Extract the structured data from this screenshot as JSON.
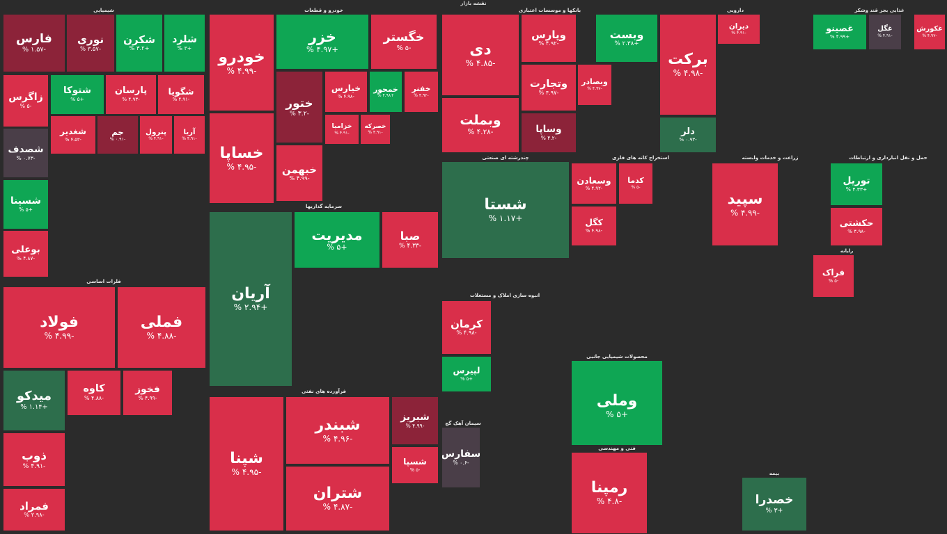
{
  "app": {
    "title": "نقشه بازار"
  },
  "colors": {
    "red": "#d92f4a",
    "dark_red": "#8c2339",
    "mid_red": "#a32a40",
    "green": "#0fa654",
    "dark_green": "#2d6e4c",
    "neutral": "#4a3e48",
    "bg": "#2b2b2b"
  },
  "sectors": [
    {
      "name": "شیمیایی",
      "tiles": [
        {
          "sym": "فارس",
          "pct": "-۱.۵۷ %",
          "c": "dark_red"
        },
        {
          "sym": "نوری",
          "pct": "-۳.۵۷ %",
          "c": "dark_red"
        },
        {
          "sym": "شکرن",
          "pct": "+۳.۲ %",
          "c": "green"
        },
        {
          "sym": "شلرد",
          "pct": "+۳ %",
          "c": "green"
        },
        {
          "sym": "زاگرس",
          "pct": "-۵ %",
          "c": "red"
        },
        {
          "sym": "شتوکا",
          "pct": "+۵ %",
          "c": "green"
        },
        {
          "sym": "پارسان",
          "pct": "-۴.۹۳ %",
          "c": "red"
        },
        {
          "sym": "شگویا",
          "pct": "-۴.۹۱ %",
          "c": "red"
        },
        {
          "sym": "شصدف",
          "pct": "-۰.۷۳ %",
          "c": "neutral"
        },
        {
          "sym": "شغدیر",
          "pct": "-۴.۵۳ %",
          "c": "red"
        },
        {
          "sym": "جم",
          "pct": "-۰.۹۱ %",
          "c": "dark_red"
        },
        {
          "sym": "پترول",
          "pct": "-۴.۹۱ %",
          "c": "red"
        },
        {
          "sym": "آریا",
          "pct": "-۴.۹۱ %",
          "c": "red"
        },
        {
          "sym": "شسینا",
          "pct": "+۵ %",
          "c": "green"
        },
        {
          "sym": "بوعلی",
          "pct": "-۴.۸۷ %",
          "c": "red"
        }
      ]
    },
    {
      "name": "خودرو و قطعات",
      "tiles": [
        {
          "sym": "خزر",
          "pct": "+۴.۹۷ %",
          "c": "green"
        },
        {
          "sym": "خگستر",
          "pct": "-۵ %",
          "c": "red"
        },
        {
          "sym": "خودرو",
          "pct": "-۴.۹۹ %",
          "c": "red"
        },
        {
          "sym": "ختور",
          "pct": "-۳.۲ %",
          "c": "dark_red"
        },
        {
          "sym": "خیارس",
          "pct": "-۴.۹۸ %",
          "c": "red"
        },
        {
          "sym": "خمحور",
          "pct": "+۴.۹۸ %",
          "c": "green"
        },
        {
          "sym": "خفنر",
          "pct": "-۴.۹۲ %",
          "c": "red"
        },
        {
          "sym": "خساپا",
          "pct": "-۴.۹۵ %",
          "c": "red"
        },
        {
          "sym": "خبهمن",
          "pct": "-۴.۹۹ %",
          "c": "red"
        },
        {
          "sym": "خزامیا",
          "pct": "-۴.۹۱ %",
          "c": "red"
        },
        {
          "sym": "خصرکه",
          "pct": "-۴.۹۱ %",
          "c": "red"
        }
      ]
    },
    {
      "name": "بانکها و موسسات اعتباری",
      "tiles": [
        {
          "sym": "دی",
          "pct": "-۴.۸۵ %",
          "c": "red"
        },
        {
          "sym": "وپارس",
          "pct": "-۴.۹۲ %",
          "c": "red"
        },
        {
          "sym": "وبست",
          "pct": "+۲.۳۸ %",
          "c": "green"
        },
        {
          "sym": "وتجارت",
          "pct": "-۴.۹۷ %",
          "c": "red"
        },
        {
          "sym": "وبملت",
          "pct": "-۴.۲۸ %",
          "c": "red"
        },
        {
          "sym": "وبصادر",
          "pct": "-۴.۹۷ %",
          "c": "red"
        },
        {
          "sym": "وساپا",
          "pct": "-۴.۲ %",
          "c": "dark_red"
        }
      ]
    },
    {
      "name": "دارویی",
      "tiles": [
        {
          "sym": "برکت",
          "pct": "-۴.۹۸ %",
          "c": "red"
        },
        {
          "sym": "دلر",
          "pct": "-۰.۹۳ %",
          "c": "dark_green"
        },
        {
          "sym": "دیران",
          "pct": "-۴.۹۱ %",
          "c": "red"
        }
      ]
    },
    {
      "name": "غذایی بجز قند وشکر",
      "tiles": [
        {
          "sym": "غصینو",
          "pct": "+۴.۹۹ %",
          "c": "green"
        },
        {
          "sym": "غگل",
          "pct": "-۴.۹۱ %",
          "c": "neutral"
        },
        {
          "sym": "غکورش",
          "pct": "-۴.۹۷ %",
          "c": "red"
        }
      ]
    },
    {
      "name": "سرمایه گذاریها",
      "tiles": [
        {
          "sym": "آریان",
          "pct": "+۲.۹۴ %",
          "c": "dark_green"
        },
        {
          "sym": "مدیریت",
          "pct": "+۵ %",
          "c": "green"
        },
        {
          "sym": "صبا",
          "pct": "-۴.۳۳ %",
          "c": "red"
        }
      ]
    },
    {
      "name": "چندرشته ای صنعتی",
      "tiles": [
        {
          "sym": "شستا",
          "pct": "+۱.۱۷ %",
          "c": "dark_green"
        }
      ]
    },
    {
      "name": "فلزات اساسی",
      "tiles": [
        {
          "sym": "فولاد",
          "pct": "-۴.۹۹ %",
          "c": "red"
        },
        {
          "sym": "فملی",
          "pct": "-۴.۸۸ %",
          "c": "red"
        },
        {
          "sym": "میدکو",
          "pct": "+۱.۱۴ %",
          "c": "dark_green"
        },
        {
          "sym": "کاوه",
          "pct": "-۴.۸۸ %",
          "c": "red"
        },
        {
          "sym": "فخوز",
          "pct": "-۴.۹۹ %",
          "c": "red"
        },
        {
          "sym": "ذوب",
          "pct": "-۴.۹۱ %",
          "c": "red"
        },
        {
          "sym": "فمراد",
          "pct": "-۲.۹۸ %",
          "c": "red"
        }
      ]
    },
    {
      "name": "فرآورده های نفتی",
      "tiles": [
        {
          "sym": "شپنا",
          "pct": "-۴.۹۵ %",
          "c": "red"
        },
        {
          "sym": "شبندر",
          "pct": "-۴.۹۶ %",
          "c": "red"
        },
        {
          "sym": "شبریز",
          "pct": "-۴.۹۹ %",
          "c": "dark_red"
        },
        {
          "sym": "شتران",
          "pct": "-۴.۸۷ %",
          "c": "red"
        },
        {
          "sym": "شسپا",
          "pct": "-۵ %",
          "c": "red"
        }
      ]
    },
    {
      "name": "استخراج کانه های فلزی",
      "tiles": [
        {
          "sym": "کگل",
          "pct": "-۴.۹۸ %",
          "c": "red"
        },
        {
          "sym": "کدما",
          "pct": "-۵ %",
          "c": "red"
        },
        {
          "sym": "وسعادن",
          "pct": "-۴.۹۲ %",
          "c": "red"
        }
      ]
    },
    {
      "name": "زراعت و خدمات وابسته",
      "tiles": [
        {
          "sym": "سپید",
          "pct": "-۴.۹۹ %",
          "c": "red"
        }
      ]
    },
    {
      "name": "حمل و نقل انبارداری و ارتباطات",
      "tiles": [
        {
          "sym": "توریل",
          "pct": "+۴.۳۳ %",
          "c": "green"
        },
        {
          "sym": "حکشتی",
          "pct": "-۴.۹۸ %",
          "c": "red"
        }
      ]
    },
    {
      "name": "محصولات شیمیایی جانبی",
      "tiles": [
        {
          "sym": "وملی",
          "pct": "+۵ %",
          "c": "green"
        }
      ]
    },
    {
      "name": "فنی و مهندسی",
      "tiles": [
        {
          "sym": "رمپنا",
          "pct": "-۴.۸ %",
          "c": "red"
        }
      ]
    },
    {
      "name": "انبوه سازی املاک و مستغلات",
      "tiles": [
        {
          "sym": "کرمان",
          "pct": "-۴.۹۸ %",
          "c": "red"
        },
        {
          "sym": "لپیرس",
          "pct": "+۵ %",
          "c": "green"
        }
      ]
    },
    {
      "name": "سیمان آهک گچ",
      "tiles": [
        {
          "sym": "سفارس",
          "pct": "-۰.۶ %",
          "c": "neutral"
        }
      ]
    },
    {
      "name": "رایانه",
      "tiles": [
        {
          "sym": "فراک",
          "pct": "-۵ %",
          "c": "red"
        }
      ]
    },
    {
      "name": "بیمه",
      "tiles": [
        {
          "sym": "خصدرا",
          "pct": "+۳ %",
          "c": "dark_green"
        }
      ]
    }
  ]
}
